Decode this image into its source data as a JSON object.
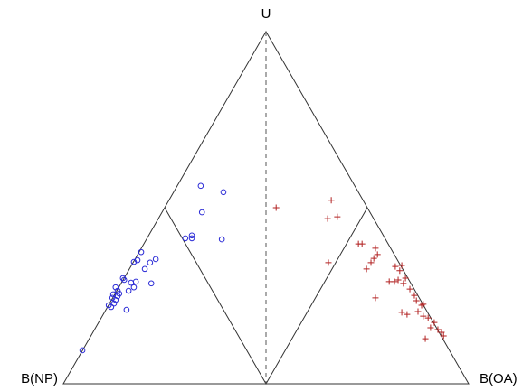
{
  "chart_data": {
    "type": "ternary",
    "vertices": {
      "top": "U",
      "left": "B(NP)",
      "right": "B(OA)"
    },
    "xlim": [
      0,
      100
    ],
    "ylim": [
      0,
      100
    ],
    "series": [
      {
        "color": "#2b2bd6",
        "marker": "circle",
        "x": [
          4.7,
          11.8,
          11.2,
          12.5,
          12.9,
          12.1,
          13.4,
          15.6,
          13.8,
          12.3,
          13.4,
          16.1,
          17.4,
          16.7,
          17.9,
          15.0,
          21.7,
          20.1,
          21.4,
          22.8,
          17.4,
          18.3,
          19.2,
          14.7,
          12.9,
          33.9,
          39.5,
          34.2,
          30.1,
          31.7,
          31.7,
          39.1
        ],
        "y": [
          9.5,
          21.8,
          22.3,
          22.8,
          23.8,
          24.4,
          24.9,
          21.0,
          25.6,
          25.4,
          26.4,
          26.4,
          27.4,
          28.7,
          29.0,
          29.5,
          28.5,
          32.6,
          34.4,
          35.4,
          34.6,
          35.1,
          37.4,
          30.0,
          27.4,
          56.2,
          54.4,
          48.7,
          41.3,
          42.1,
          41.3,
          41.0
        ]
      },
      {
        "color": "#b22222",
        "marker": "plus",
        "x": [
          52.5,
          66.1,
          67.6,
          65.2,
          65.4,
          72.8,
          73.7,
          77.0,
          77.5,
          76.6,
          75.9,
          74.8,
          81.9,
          83.5,
          83.0,
          84.4,
          82.6,
          80.4,
          81.7,
          83.9,
          85.5,
          86.6,
          87.1,
          77.0,
          88.8,
          88.4,
          87.5,
          83.5,
          84.8,
          88.8,
          90.0,
          91.5,
          90.6,
          92.4,
          93.3,
          93.8,
          89.3
        ],
        "y": [
          50.0,
          52.1,
          47.4,
          46.9,
          34.4,
          39.7,
          39.7,
          38.5,
          36.7,
          35.6,
          34.4,
          32.6,
          33.3,
          33.6,
          32.1,
          30.0,
          29.5,
          29.0,
          29.0,
          28.5,
          26.9,
          25.1,
          23.6,
          24.4,
          22.6,
          22.3,
          20.5,
          20.3,
          19.7,
          19.2,
          18.7,
          17.4,
          15.9,
          15.4,
          14.6,
          13.6,
          12.8
        ]
      }
    ]
  }
}
